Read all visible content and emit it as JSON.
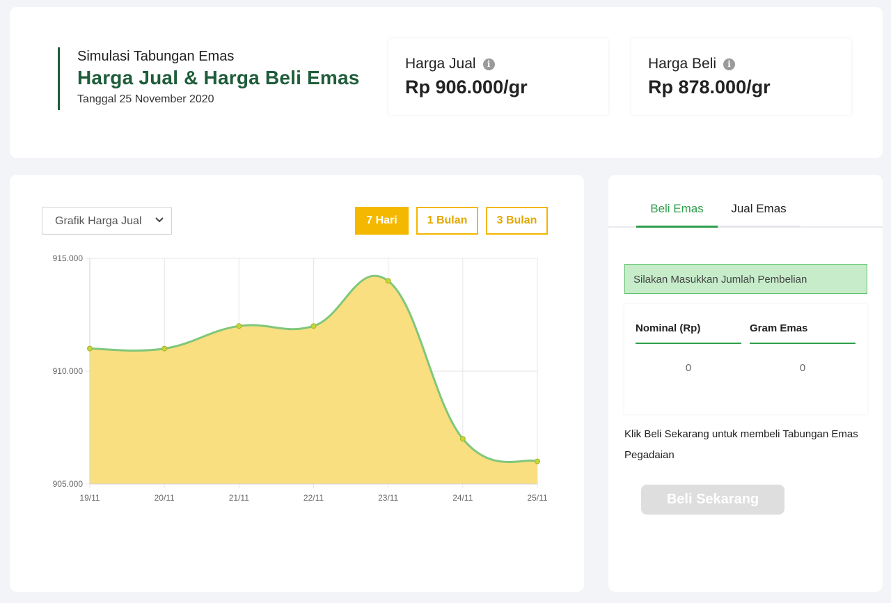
{
  "header": {
    "subtitle": "Simulasi Tabungan Emas",
    "title": "Harga Jual & Harga Beli Emas",
    "date": "Tanggal 25 November 2020"
  },
  "prices": {
    "jual_label": "Harga Jual",
    "jual_value": "Rp 906.000/gr",
    "beli_label": "Harga Beli",
    "beli_value": "Rp 878.000/gr",
    "info_icon": "i"
  },
  "chart_controls": {
    "selected_chart": "Grafik Harga Jual",
    "ranges": [
      "7 Hari",
      "1 Bulan",
      "3 Bulan"
    ],
    "active_range": "7 Hari"
  },
  "chart_data": {
    "type": "area",
    "categories": [
      "19/11",
      "20/11",
      "21/11",
      "22/11",
      "23/11",
      "24/11",
      "25/11"
    ],
    "series": [
      {
        "values": [
          911000,
          911000,
          912000,
          912000,
          914000,
          907000,
          906000
        ]
      }
    ],
    "y_ticks": [
      "915.000",
      "910.000",
      "905.000"
    ],
    "y_tick_values": [
      915000,
      910000,
      905000
    ],
    "ylim": [
      905000,
      915000
    ],
    "grid": true,
    "colors": {
      "fill": "#fadf80",
      "line": "#80c77a",
      "point": "#c9d43a"
    }
  },
  "side": {
    "tabs": [
      "Beli Emas",
      "Jual Emas"
    ],
    "active_tab": "Beli Emas",
    "notice": "Silakan Masukkan Jumlah Pembelian",
    "nominal_label": "Nominal (Rp)",
    "nominal_value": "0",
    "gram_label": "Gram Emas",
    "gram_value": "0",
    "info_text": "Klik Beli Sekarang untuk membeli Tabungan Emas Pegadaian",
    "buy_button": "Beli Sekarang"
  },
  "colors": {
    "brand_green": "#1f5d3a",
    "accent_green": "#2e9e4a",
    "accent_yellow": "#f5b800"
  }
}
